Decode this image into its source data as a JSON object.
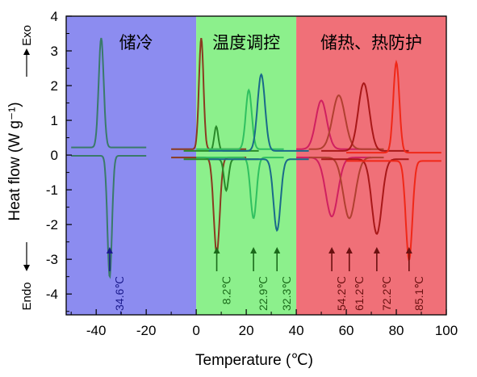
{
  "chart_data": {
    "type": "line",
    "title": "",
    "xlabel": "Temperature (℃)",
    "ylabel": "Heat flow (W g⁻¹)",
    "xlim": [
      -52,
      100
    ],
    "ylim": [
      -4.6,
      4
    ],
    "x_ticks": [
      "-40",
      "-20",
      "0",
      "20",
      "40",
      "60",
      "80",
      "100"
    ],
    "y_ticks": [
      "4",
      "3",
      "2",
      "1",
      "0",
      "-1",
      "-2",
      "-3",
      "-4"
    ],
    "grid": false,
    "side_labels": {
      "exo": "Exo",
      "endo": "Endo"
    },
    "regions": [
      {
        "label": "储冷",
        "x_range": [
          -52,
          0
        ],
        "color": "#8c8cf0"
      },
      {
        "label": "温度调控",
        "x_range": [
          0,
          40
        ],
        "color": "#8cf08c"
      },
      {
        "label": "储热、热防护",
        "x_range": [
          40,
          100
        ],
        "color": "#f07078"
      }
    ],
    "annotations": [
      {
        "text": "-34.6℃",
        "x": -34.6,
        "color": "#1a1a8c"
      },
      {
        "text": "8.2℃",
        "x": 8.2,
        "color": "#1a6a1a"
      },
      {
        "text": "22.9℃",
        "x": 22.9,
        "color": "#1a6a1a"
      },
      {
        "text": "32.3℃",
        "x": 32.3,
        "color": "#1a6a1a"
      },
      {
        "text": "54.2℃",
        "x": 54.2,
        "color": "#6a1010"
      },
      {
        "text": "61.2℃",
        "x": 61.2,
        "color": "#6a1010"
      },
      {
        "text": "72.2℃",
        "x": 72.2,
        "color": "#6a1010"
      },
      {
        "text": "85.1℃",
        "x": 85.1,
        "color": "#6a1010"
      }
    ],
    "series": [
      {
        "color": "#3a7a6a",
        "range": [
          -50,
          -20
        ],
        "base": 0.1,
        "exo_peak": {
          "x": -38,
          "y": 3.15,
          "w": 1.0
        },
        "endo_peak": {
          "x": -34.6,
          "y": -3.5,
          "w": 0.9
        }
      },
      {
        "color": "#8a3a20",
        "range": [
          -10,
          20
        ],
        "base": 0.05,
        "exo_peak": {
          "x": 2,
          "y": 3.2,
          "w": 0.9
        },
        "endo_peak": {
          "x": 8.2,
          "y": -2.75,
          "w": 1.2
        }
      },
      {
        "color": "#2a8a2a",
        "range": [
          -5,
          25
        ],
        "base": 0.0,
        "exo_peak": {
          "x": 8,
          "y": 0.7,
          "w": 0.8
        },
        "endo_peak": {
          "x": 12,
          "y": -0.9,
          "w": 0.9
        }
      },
      {
        "color": "#30c060",
        "range": [
          0,
          35
        ],
        "base": 0.05,
        "exo_peak": {
          "x": 21,
          "y": 1.7,
          "w": 1.2
        },
        "endo_peak": {
          "x": 22.9,
          "y": -1.75,
          "w": 1.2
        }
      },
      {
        "color": "#1a6a8a",
        "range": [
          5,
          45
        ],
        "base": 0.0,
        "exo_peak": {
          "x": 26,
          "y": 2.2,
          "w": 1.5
        },
        "endo_peak": {
          "x": 32.3,
          "y": -2.05,
          "w": 1.4
        }
      },
      {
        "color": "#d02060",
        "range": [
          40,
          70
        ],
        "base": 0.05,
        "exo_peak": {
          "x": 50,
          "y": 1.4,
          "w": 2.2
        },
        "endo_peak": {
          "x": 54.2,
          "y": -1.7,
          "w": 2.4
        }
      },
      {
        "color": "#b04030",
        "range": [
          45,
          75
        ],
        "base": 0.05,
        "exo_peak": {
          "x": 57,
          "y": 1.55,
          "w": 2.5
        },
        "endo_peak": {
          "x": 61.2,
          "y": -1.75,
          "w": 2.4
        }
      },
      {
        "color": "#a81818",
        "range": [
          50,
          85
        ],
        "base": 0.0,
        "exo_peak": {
          "x": 67,
          "y": 1.95,
          "w": 2.2
        },
        "endo_peak": {
          "x": 72.2,
          "y": -2.15,
          "w": 2.0
        }
      },
      {
        "color": "#f02818",
        "range": [
          60,
          98
        ],
        "base": -0.05,
        "exo_peak": {
          "x": 80,
          "y": 2.6,
          "w": 1.2
        },
        "endo_peak": {
          "x": 85.1,
          "y": -2.85,
          "w": 1.3
        }
      }
    ]
  }
}
